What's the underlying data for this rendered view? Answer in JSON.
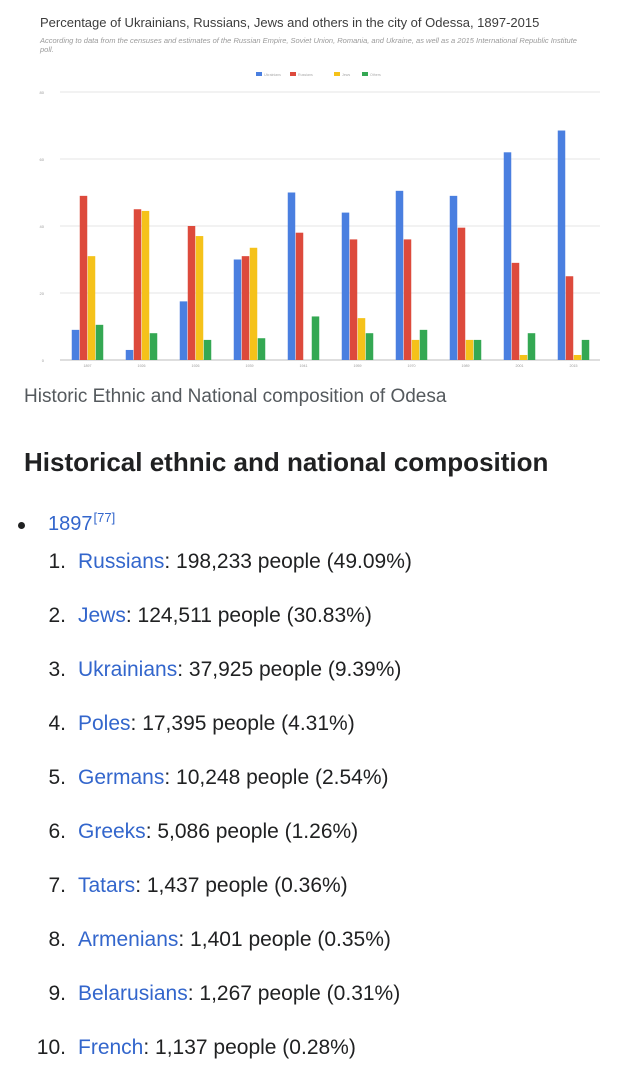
{
  "figure": {
    "title": "Percentage of Ukrainians, Russians, Jews and others in the city of Odessa, 1897-2015",
    "subtitle": "According to data from the censuses and estimates of the Russian Empire, Soviet Union, Romania, and Ukraine, as well as a 2015 International Republic Institute poll.",
    "caption": "Historic Ethnic and National composition of Odesa"
  },
  "chart_data": {
    "type": "bar",
    "categories": [
      "1897",
      "1926",
      "1926",
      "1939",
      "1941",
      "1959",
      "1970",
      "1989",
      "2001",
      "2015"
    ],
    "series": [
      {
        "name": "Ukrainians",
        "color": "#4a7fe0",
        "values": [
          9,
          3,
          17.5,
          30,
          50,
          44,
          50.5,
          49,
          62,
          68.5
        ]
      },
      {
        "name": "Russians",
        "color": "#dd4a3c",
        "values": [
          49,
          45,
          40,
          31,
          38,
          36,
          36,
          39.5,
          29,
          25
        ]
      },
      {
        "name": "Jews",
        "color": "#f5c21a",
        "values": [
          31,
          44.5,
          37,
          33.5,
          0,
          12.5,
          6,
          6,
          1.5,
          1.5
        ]
      },
      {
        "name": "Others",
        "color": "#34a853",
        "values": [
          10.5,
          8,
          6,
          6.5,
          13,
          8,
          9,
          6,
          8,
          6
        ]
      }
    ],
    "yticks": [
      "0",
      "20",
      "40",
      "60",
      "80"
    ],
    "ylim": [
      0,
      80
    ],
    "grid": true,
    "legend": "top-center"
  },
  "section": {
    "heading": "Historical ethnic and national composition",
    "year_link": "1897",
    "year_ref": "[77]"
  },
  "entries": [
    {
      "num": "1.",
      "name": "Russians",
      "detail": ": 198,233 people (49.09%)"
    },
    {
      "num": "2.",
      "name": "Jews",
      "detail": ": 124,511 people (30.83%)"
    },
    {
      "num": "3.",
      "name": "Ukrainians",
      "detail": ": 37,925 people (9.39%)"
    },
    {
      "num": "4.",
      "name": "Poles",
      "detail": ": 17,395 people (4.31%)"
    },
    {
      "num": "5.",
      "name": "Germans",
      "detail": ": 10,248 people (2.54%)"
    },
    {
      "num": "6.",
      "name": "Greeks",
      "detail": ": 5,086 people (1.26%)"
    },
    {
      "num": "7.",
      "name": "Tatars",
      "detail": ": 1,437 people (0.36%)"
    },
    {
      "num": "8.",
      "name": "Armenians",
      "detail": ": 1,401 people (0.35%)"
    },
    {
      "num": "9.",
      "name": "Belarusians",
      "detail": ": 1,267 people (0.31%)"
    },
    {
      "num": "10.",
      "name": "French",
      "detail": ": 1,137 people (0.28%)"
    }
  ]
}
